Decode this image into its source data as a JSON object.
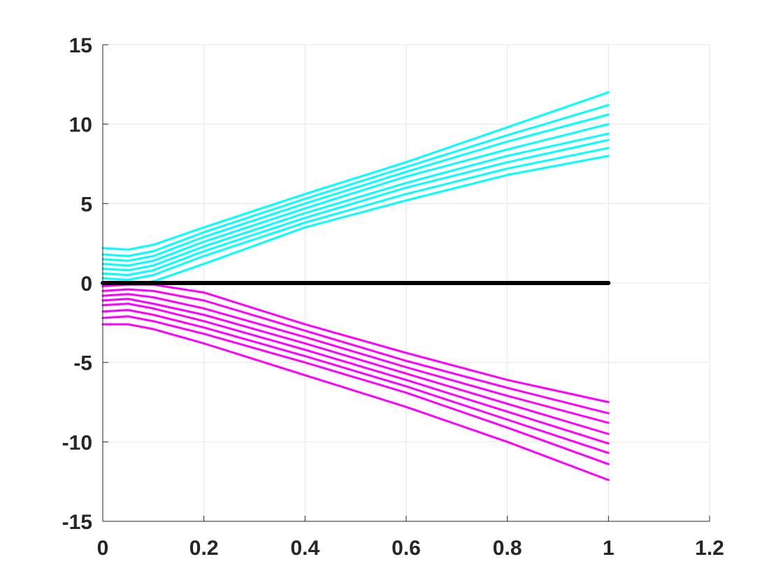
{
  "chart_data": {
    "type": "line",
    "title": "",
    "xlabel": "",
    "ylabel": "",
    "xlim": [
      0,
      1.2
    ],
    "ylim": [
      -15,
      15
    ],
    "xticks": [
      0,
      0.2,
      0.4,
      0.6,
      0.8,
      1,
      1.2
    ],
    "xtick_labels": [
      "0",
      "0.2",
      "0.4",
      "0.6",
      "0.8",
      "1",
      "1.2"
    ],
    "yticks": [
      -15,
      -10,
      -5,
      0,
      5,
      10,
      15
    ],
    "ytick_labels": [
      "-15",
      "-10",
      "-5",
      "0",
      "5",
      "10",
      "15"
    ],
    "grid": true,
    "legend": "none",
    "colors": {
      "upper": "#00ffff",
      "lower": "#ff00ff",
      "zero": "#000000"
    },
    "series": [
      {
        "color": "#00ffff",
        "x": [
          0,
          0.05,
          0.1,
          0.2,
          0.4,
          0.6,
          0.8,
          1
        ],
        "y": [
          0.0,
          -0.1,
          0.1,
          1.2,
          3.5,
          5.2,
          6.8,
          8.0
        ]
      },
      {
        "color": "#00ffff",
        "x": [
          0,
          0.05,
          0.1,
          0.2,
          0.4,
          0.6,
          0.8,
          1
        ],
        "y": [
          0.3,
          0.2,
          0.5,
          1.7,
          3.8,
          5.6,
          7.2,
          8.5
        ]
      },
      {
        "color": "#00ffff",
        "x": [
          0,
          0.05,
          0.1,
          0.2,
          0.4,
          0.6,
          0.8,
          1
        ],
        "y": [
          0.6,
          0.5,
          0.8,
          2.0,
          4.1,
          6.0,
          7.6,
          9.0
        ]
      },
      {
        "color": "#00ffff",
        "x": [
          0,
          0.05,
          0.1,
          0.2,
          0.4,
          0.6,
          0.8,
          1
        ],
        "y": [
          0.9,
          0.8,
          1.1,
          2.3,
          4.4,
          6.3,
          8.0,
          9.4
        ]
      },
      {
        "color": "#00ffff",
        "x": [
          0,
          0.05,
          0.1,
          0.2,
          0.4,
          0.6,
          0.8,
          1
        ],
        "y": [
          1.2,
          1.1,
          1.4,
          2.6,
          4.7,
          6.7,
          8.4,
          10.0
        ]
      },
      {
        "color": "#00ffff",
        "x": [
          0,
          0.05,
          0.1,
          0.2,
          0.4,
          0.6,
          0.8,
          1
        ],
        "y": [
          1.5,
          1.4,
          1.7,
          2.9,
          5.0,
          7.0,
          8.9,
          10.6
        ]
      },
      {
        "color": "#00ffff",
        "x": [
          0,
          0.05,
          0.1,
          0.2,
          0.4,
          0.6,
          0.8,
          1
        ],
        "y": [
          1.8,
          1.7,
          2.0,
          3.2,
          5.3,
          7.3,
          9.3,
          11.2
        ]
      },
      {
        "color": "#00ffff",
        "x": [
          0,
          0.05,
          0.1,
          0.2,
          0.4,
          0.6,
          0.8,
          1
        ],
        "y": [
          2.2,
          2.1,
          2.4,
          3.5,
          5.6,
          7.6,
          9.8,
          12.0
        ]
      },
      {
        "color": "#ff00ff",
        "x": [
          0,
          0.05,
          0.1,
          0.2,
          0.4,
          0.6,
          0.8,
          1
        ],
        "y": [
          -0.2,
          -0.1,
          -0.1,
          -0.6,
          -2.6,
          -4.4,
          -6.1,
          -7.5
        ]
      },
      {
        "color": "#ff00ff",
        "x": [
          0,
          0.05,
          0.1,
          0.2,
          0.4,
          0.6,
          0.8,
          1
        ],
        "y": [
          -0.5,
          -0.4,
          -0.5,
          -1.1,
          -3.0,
          -4.9,
          -6.6,
          -8.2
        ]
      },
      {
        "color": "#ff00ff",
        "x": [
          0,
          0.05,
          0.1,
          0.2,
          0.4,
          0.6,
          0.8,
          1
        ],
        "y": [
          -0.8,
          -0.7,
          -0.9,
          -1.6,
          -3.4,
          -5.3,
          -7.1,
          -8.8
        ]
      },
      {
        "color": "#ff00ff",
        "x": [
          0,
          0.05,
          0.1,
          0.2,
          0.4,
          0.6,
          0.8,
          1
        ],
        "y": [
          -1.1,
          -1.0,
          -1.3,
          -2.0,
          -3.8,
          -5.7,
          -7.6,
          -9.5
        ]
      },
      {
        "color": "#ff00ff",
        "x": [
          0,
          0.05,
          0.1,
          0.2,
          0.4,
          0.6,
          0.8,
          1
        ],
        "y": [
          -1.4,
          -1.3,
          -1.6,
          -2.4,
          -4.2,
          -6.1,
          -8.1,
          -10.1
        ]
      },
      {
        "color": "#ff00ff",
        "x": [
          0,
          0.05,
          0.1,
          0.2,
          0.4,
          0.6,
          0.8,
          1
        ],
        "y": [
          -1.8,
          -1.7,
          -2.0,
          -2.8,
          -4.6,
          -6.5,
          -8.6,
          -10.7
        ]
      },
      {
        "color": "#ff00ff",
        "x": [
          0,
          0.05,
          0.1,
          0.2,
          0.4,
          0.6,
          0.8,
          1
        ],
        "y": [
          -2.2,
          -2.1,
          -2.4,
          -3.2,
          -5.0,
          -6.9,
          -9.1,
          -11.4
        ]
      },
      {
        "color": "#ff00ff",
        "x": [
          0,
          0.05,
          0.1,
          0.2,
          0.4,
          0.6,
          0.8,
          1
        ],
        "y": [
          -2.6,
          -2.6,
          -2.9,
          -3.8,
          -5.8,
          -7.8,
          -10.0,
          -12.4
        ]
      },
      {
        "color": "#000000",
        "x": [
          0,
          1
        ],
        "y": [
          0,
          0
        ]
      }
    ]
  }
}
